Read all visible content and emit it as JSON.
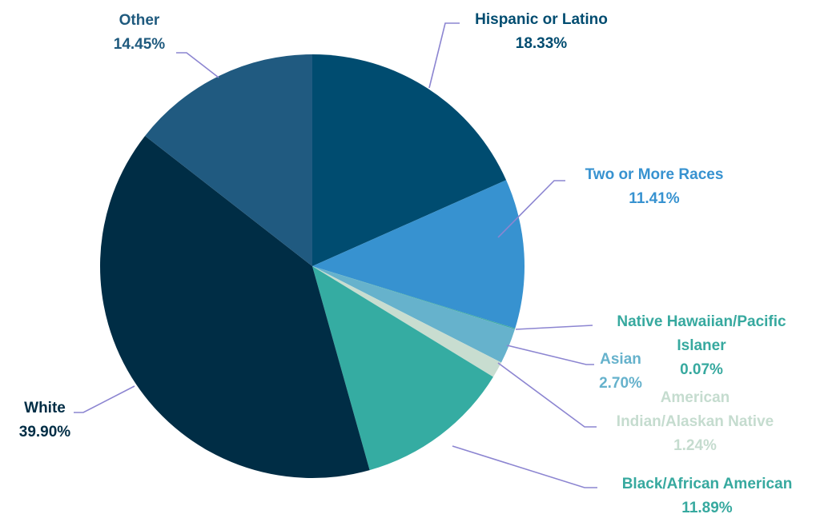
{
  "chart_data": {
    "type": "pie",
    "start_angle_deg": 0,
    "direction": "clockwise",
    "slices": [
      {
        "label": [
          "Hispanic or Latino"
        ],
        "value": 18.33,
        "value_label": "18.33%",
        "color": "#004c70",
        "label_color": "#004c70"
      },
      {
        "label": [
          "Two or More Races"
        ],
        "value": 11.41,
        "value_label": "11.41%",
        "color": "#3792d0",
        "label_color": "#3792d0"
      },
      {
        "label": [
          "Native Hawaiian/Pacific",
          "Islaner"
        ],
        "value": 0.07,
        "value_label": "0.07%",
        "color": "#3aa8a0",
        "label_color": "#37a99f"
      },
      {
        "label": [
          "Asian"
        ],
        "value": 2.7,
        "value_label": "2.70%",
        "color": "#66b2cc",
        "label_color": "#66b2cc"
      },
      {
        "label": [
          "American",
          "Indian/Alaskan Native"
        ],
        "value": 1.24,
        "value_label": "1.24%",
        "color": "#c8ddd0",
        "label_color": "#c5dccf"
      },
      {
        "label": [
          "Black/African American"
        ],
        "value": 11.89,
        "value_label": "11.89%",
        "color": "#35aca2",
        "label_color": "#37a99f"
      },
      {
        "label": [
          "White"
        ],
        "value": 39.9,
        "value_label": "39.90%",
        "color": "#002d45",
        "label_color": "#002d45"
      },
      {
        "label": [
          "Other"
        ],
        "value": 14.45,
        "value_label": "14.45%",
        "color": "#205a80",
        "label_color": "#1f5a7e"
      }
    ],
    "leader_line_color": "#8c85d1"
  }
}
